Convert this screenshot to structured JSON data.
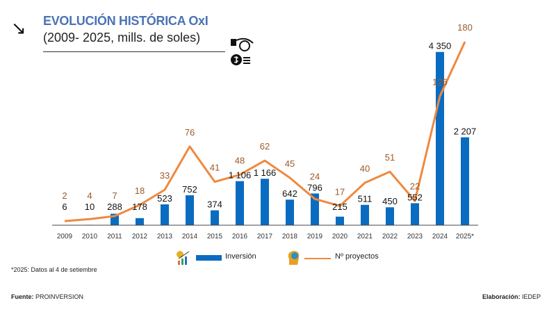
{
  "header": {
    "title": "EVOLUCIÓN HISTÓRICA OxI",
    "subtitle": "(2009- 2025, mills. de soles)",
    "arrow_icon": "arrow-down-right-icon",
    "money_icon": "money-bag-hand-icon"
  },
  "chart_data": {
    "type": "bar+line",
    "categories": [
      "2009",
      "2010",
      "2011",
      "2012",
      "2013",
      "2014",
      "2015",
      "2016",
      "2017",
      "2018",
      "2019",
      "2020",
      "2021",
      "2022",
      "2023",
      "2024",
      "2025*"
    ],
    "series": [
      {
        "name": "Inversión",
        "type": "bar",
        "color": "#0a6cc0",
        "values": [
          6,
          10,
          288,
          178,
          523,
          752,
          374,
          1106,
          1166,
          642,
          796,
          215,
          511,
          450,
          552,
          4350,
          2207
        ],
        "labels": [
          "6",
          "10",
          "288",
          "178",
          "523",
          "752",
          "374",
          "1 106",
          "1 166",
          "642",
          "796",
          "215",
          "511",
          "450",
          "552",
          "4 350",
          "2 207"
        ]
      },
      {
        "name": "Nº proyectos",
        "type": "line",
        "color": "#f0883e",
        "label_color": "#9c5a2a",
        "values": [
          2,
          4,
          7,
          18,
          33,
          76,
          41,
          48,
          62,
          45,
          24,
          17,
          40,
          51,
          22,
          126,
          180
        ]
      }
    ],
    "legend_placement": "bottom",
    "grid": false
  },
  "legend": {
    "bar_label": "Inversión",
    "line_label": "Nº proyectos",
    "bar_icon": "growth-chart-icon",
    "line_icon": "head-gears-icon"
  },
  "footer": {
    "note": "*2025: Datos al 4 de setiembre",
    "source_label": "Fuente:",
    "source": "PROINVERSION",
    "elab_label": "Elaboración:",
    "elab": "IEDEP"
  }
}
